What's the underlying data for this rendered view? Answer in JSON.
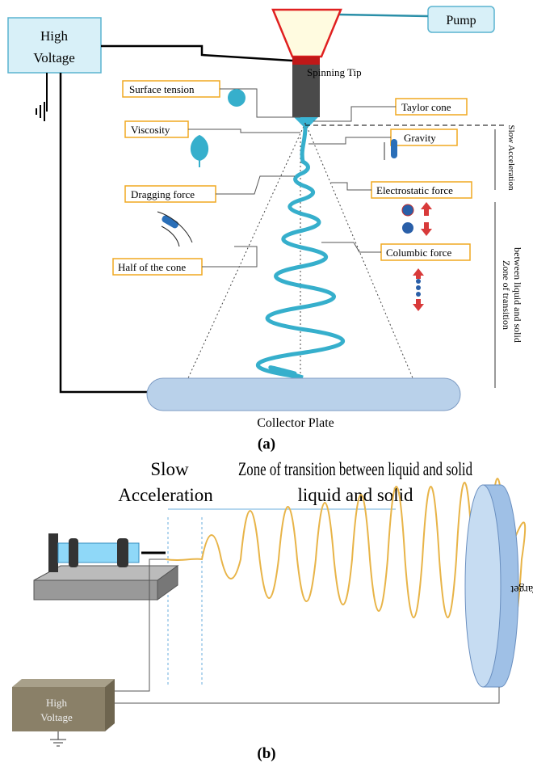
{
  "panel_a": {
    "high_voltage": [
      "High",
      "Voltage"
    ],
    "pump": "Pump",
    "spinning_tip": "Spinning Tip",
    "surface_tension": "Surface tension",
    "taylor_cone": "Taylor cone",
    "slow_acceleration": "Slow Acceleration",
    "viscosity": "Viscosity",
    "gravity": "Gravity",
    "dragging_force": "Dragging force",
    "electrostatic_force": "Electrostatic force",
    "columbic_force": "Columbic force",
    "half_of_the_cone": "Half of the cone",
    "zone_of_transition": [
      "Zone of transition",
      "between liquid and solid"
    ],
    "collector_plate": "Collector Plate",
    "caption": "(a)"
  },
  "panel_b": {
    "slow_acceleration": [
      "Slow",
      "Acceleration"
    ],
    "zone_of_transition": [
      "Zone of transition between liquid and solid",
      "liquid and solid"
    ],
    "target": "Target",
    "high_voltage": [
      "High",
      "Voltage"
    ],
    "caption": "(b)"
  }
}
